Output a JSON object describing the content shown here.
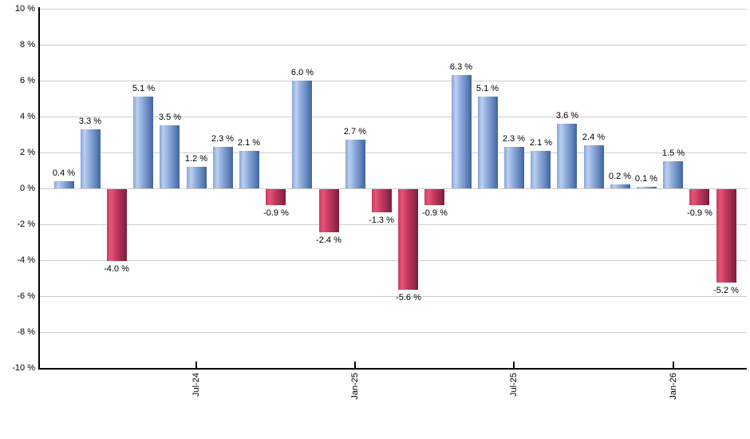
{
  "chart_data": {
    "type": "bar",
    "title": "",
    "xlabel": "",
    "ylabel": "",
    "grid": true,
    "legend": false,
    "y_axis": {
      "min": -10,
      "max": 10,
      "step": 2,
      "tick_labels": [
        "10 %",
        "8 %",
        "6 %",
        "4 %",
        "2 %",
        "0 %",
        "-2 %",
        "-4 %",
        "-6 %",
        "-8 %",
        "-10 %"
      ]
    },
    "x_axis": {
      "ticks": [
        {
          "bar_index": 5,
          "label": "Jul-24"
        },
        {
          "bar_index": 11,
          "label": "Jan-25"
        },
        {
          "bar_index": 17,
          "label": "Jul-25"
        },
        {
          "bar_index": 23,
          "label": "Jan-26"
        }
      ]
    },
    "values": [
      0.4,
      3.3,
      -4.0,
      5.1,
      3.5,
      1.2,
      2.3,
      2.1,
      -0.9,
      6.0,
      -2.4,
      2.7,
      -1.3,
      -5.6,
      -0.9,
      6.3,
      5.1,
      2.3,
      2.1,
      3.6,
      2.4,
      0.2,
      0.1,
      1.5,
      -0.9,
      -5.2
    ],
    "bar_labels": [
      "0.4 %",
      "3.3 %",
      "-4.0 %",
      "5.1 %",
      "3.5 %",
      "1.2 %",
      "2.3 %",
      "2.1 %",
      "-0.9 %",
      "6.0 %",
      "-2.4 %",
      "2.7 %",
      "-1.3 %",
      "-5.6 %",
      "-0.9 %",
      "6.3 %",
      "5.1 %",
      "2.3 %",
      "2.1 %",
      "3.6 %",
      "2.4 %",
      "0.2 %",
      "0.1 %",
      "1.5 %",
      "-0.9 %",
      "-5.2 %"
    ],
    "colors": {
      "positive_gradient_stops": [
        "#89a5d4",
        "#bad0f2",
        "#8fabda",
        "#6287bd",
        "#40639e"
      ],
      "negative_gradient_stops": [
        "#c53f62",
        "#e95379",
        "#c63c62",
        "#9d2c4c",
        "#7b1d3a"
      ],
      "gradient_positions_pct": [
        0,
        20,
        45,
        75,
        100
      ],
      "gridline": "#cdcdcd",
      "axis": "#000000",
      "label_text": "#000000",
      "background": "#ffffff"
    }
  }
}
